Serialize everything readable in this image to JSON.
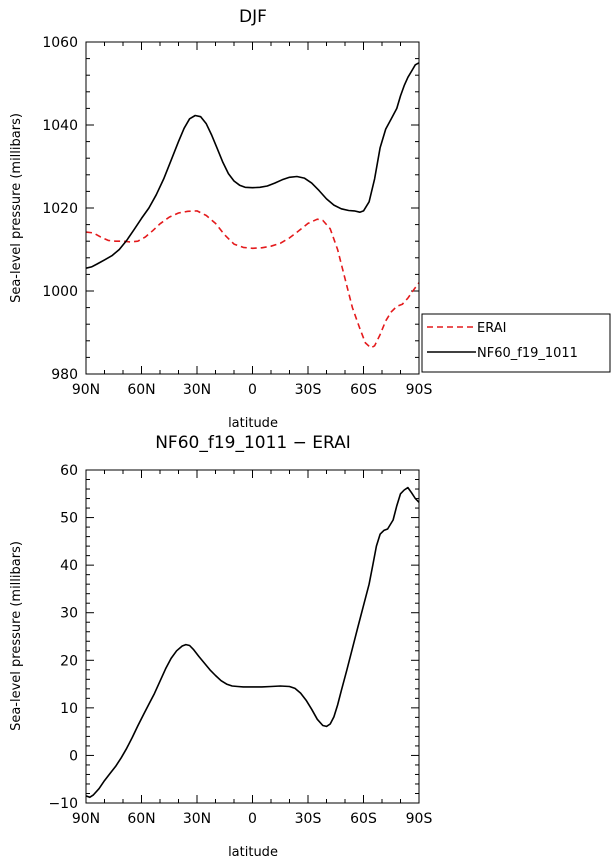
{
  "chart_data": [
    {
      "type": "line",
      "title": "DJF",
      "xlabel": "latitude",
      "ylabel": "Sea-level pressure (millibars)",
      "xlim": [
        -90,
        90
      ],
      "ylim": [
        980,
        1060
      ],
      "x_ticks": [
        -90,
        -60,
        -30,
        0,
        30,
        60,
        90
      ],
      "x_tick_labels": [
        "90N",
        "60N",
        "30N",
        "0",
        "30S",
        "60S",
        "90S"
      ],
      "y_ticks": [
        980,
        1000,
        1020,
        1040,
        1060
      ],
      "y_tick_labels": [
        "980",
        "1000",
        "1020",
        "1040",
        "1060"
      ],
      "legend_position": "right",
      "series": [
        {
          "name": "ERAI",
          "color": "#e41a1c",
          "style": "dashed",
          "points": [
            [
              -90,
              1014.2
            ],
            [
              -86,
              1014
            ],
            [
              -82,
              1013
            ],
            [
              -78,
              1012.2
            ],
            [
              -74,
              1012
            ],
            [
              -70,
              1012
            ],
            [
              -66,
              1011.8
            ],
            [
              -62,
              1012
            ],
            [
              -58,
              1013
            ],
            [
              -54,
              1014.5
            ],
            [
              -50,
              1016.2
            ],
            [
              -45,
              1017.8
            ],
            [
              -40,
              1018.8
            ],
            [
              -35,
              1019.2
            ],
            [
              -30,
              1019.3
            ],
            [
              -25,
              1018.2
            ],
            [
              -20,
              1016.3
            ],
            [
              -15,
              1013.5
            ],
            [
              -10,
              1011.3
            ],
            [
              -5,
              1010.5
            ],
            [
              0,
              1010.3
            ],
            [
              5,
              1010.4
            ],
            [
              10,
              1010.8
            ],
            [
              15,
              1011.5
            ],
            [
              20,
              1012.8
            ],
            [
              25,
              1014.5
            ],
            [
              30,
              1016.3
            ],
            [
              35,
              1017.3
            ],
            [
              38,
              1017
            ],
            [
              42,
              1015
            ],
            [
              46,
              1010
            ],
            [
              50,
              1003
            ],
            [
              54,
              996
            ],
            [
              58,
              991
            ],
            [
              61,
              987.5
            ],
            [
              64,
              986.3
            ],
            [
              66,
              986.8
            ],
            [
              69,
              989.5
            ],
            [
              72,
              992.8
            ],
            [
              75,
              995
            ],
            [
              78,
              996.3
            ],
            [
              81,
              996.8
            ],
            [
              84,
              998.3
            ],
            [
              87,
              1000.2
            ],
            [
              90,
              1002
            ]
          ]
        },
        {
          "name": "NF60_f19_1011",
          "color": "#000000",
          "style": "solid",
          "points": [
            [
              -90,
              1005.5
            ],
            [
              -87,
              1005.8
            ],
            [
              -84,
              1006.5
            ],
            [
              -80,
              1007.5
            ],
            [
              -76,
              1008.5
            ],
            [
              -72,
              1010
            ],
            [
              -68,
              1012.2
            ],
            [
              -64,
              1014.8
            ],
            [
              -60,
              1017.5
            ],
            [
              -56,
              1020
            ],
            [
              -52,
              1023.2
            ],
            [
              -48,
              1027
            ],
            [
              -44,
              1031.5
            ],
            [
              -40,
              1036
            ],
            [
              -37,
              1039.2
            ],
            [
              -34,
              1041.5
            ],
            [
              -31,
              1042.3
            ],
            [
              -28,
              1042
            ],
            [
              -25,
              1040.3
            ],
            [
              -22,
              1037.5
            ],
            [
              -19,
              1034.3
            ],
            [
              -16,
              1031
            ],
            [
              -13,
              1028.3
            ],
            [
              -10,
              1026.5
            ],
            [
              -7,
              1025.5
            ],
            [
              -4,
              1025
            ],
            [
              0,
              1024.9
            ],
            [
              4,
              1025
            ],
            [
              8,
              1025.3
            ],
            [
              12,
              1026
            ],
            [
              16,
              1026.8
            ],
            [
              20,
              1027.4
            ],
            [
              24,
              1027.6
            ],
            [
              28,
              1027.2
            ],
            [
              32,
              1026
            ],
            [
              36,
              1024.2
            ],
            [
              40,
              1022.2
            ],
            [
              44,
              1020.7
            ],
            [
              48,
              1019.8
            ],
            [
              52,
              1019.4
            ],
            [
              55,
              1019.3
            ],
            [
              58,
              1019
            ],
            [
              60,
              1019.3
            ],
            [
              63,
              1021.5
            ],
            [
              66,
              1027
            ],
            [
              69,
              1034.5
            ],
            [
              72,
              1039
            ],
            [
              75,
              1041.5
            ],
            [
              78,
              1044
            ],
            [
              80,
              1047
            ],
            [
              82,
              1049.5
            ],
            [
              84,
              1051.5
            ],
            [
              86,
              1053
            ],
            [
              88,
              1054.5
            ],
            [
              90,
              1055
            ]
          ]
        }
      ]
    },
    {
      "type": "line",
      "title": "NF60_f19_1011 − ERAI",
      "xlabel": "latitude",
      "ylabel": "Sea-level pressure (millibars)",
      "xlim": [
        -90,
        90
      ],
      "ylim": [
        -10,
        60
      ],
      "x_ticks": [
        -90,
        -60,
        -30,
        0,
        30,
        60,
        90
      ],
      "x_tick_labels": [
        "90N",
        "60N",
        "30N",
        "0",
        "30S",
        "60S",
        "90S"
      ],
      "y_ticks": [
        -10,
        0,
        10,
        20,
        30,
        40,
        50,
        60
      ],
      "y_tick_labels": [
        "−10",
        "0",
        "10",
        "20",
        "30",
        "40",
        "50",
        "60"
      ],
      "series": [
        {
          "name": "NF60_f19_1011 − ERAI",
          "color": "#000000",
          "style": "solid",
          "points": [
            [
              -90,
              -8.5
            ],
            [
              -88,
              -8.8
            ],
            [
              -86,
              -8.3
            ],
            [
              -83,
              -7
            ],
            [
              -80,
              -5.3
            ],
            [
              -77,
              -3.8
            ],
            [
              -74,
              -2.3
            ],
            [
              -71,
              -0.5
            ],
            [
              -68,
              1.5
            ],
            [
              -65,
              3.8
            ],
            [
              -62,
              6.2
            ],
            [
              -59,
              8.5
            ],
            [
              -56,
              10.8
            ],
            [
              -53,
              13
            ],
            [
              -50,
              15.6
            ],
            [
              -47,
              18.2
            ],
            [
              -44,
              20.4
            ],
            [
              -41,
              22
            ],
            [
              -38,
              23
            ],
            [
              -36,
              23.3
            ],
            [
              -34,
              23.1
            ],
            [
              -32,
              22.3
            ],
            [
              -29,
              20.8
            ],
            [
              -26,
              19.4
            ],
            [
              -23,
              18
            ],
            [
              -20,
              16.8
            ],
            [
              -17,
              15.7
            ],
            [
              -14,
              15
            ],
            [
              -11,
              14.6
            ],
            [
              -8,
              14.5
            ],
            [
              -5,
              14.4
            ],
            [
              0,
              14.4
            ],
            [
              5,
              14.4
            ],
            [
              10,
              14.5
            ],
            [
              15,
              14.6
            ],
            [
              20,
              14.5
            ],
            [
              23,
              14.1
            ],
            [
              26,
              13.1
            ],
            [
              29,
              11.6
            ],
            [
              32,
              9.7
            ],
            [
              35,
              7.6
            ],
            [
              38,
              6.3
            ],
            [
              40,
              6.1
            ],
            [
              42,
              6.6
            ],
            [
              44,
              8.1
            ],
            [
              46,
              10.6
            ],
            [
              48,
              13.6
            ],
            [
              51,
              18
            ],
            [
              54,
              22.5
            ],
            [
              57,
              27
            ],
            [
              60,
              31.5
            ],
            [
              63,
              36
            ],
            [
              65,
              40
            ],
            [
              67,
              44
            ],
            [
              69,
              46.5
            ],
            [
              71,
              47.3
            ],
            [
              73,
              47.6
            ],
            [
              76,
              49.5
            ],
            [
              78,
              52.5
            ],
            [
              80,
              55
            ],
            [
              82,
              55.8
            ],
            [
              84,
              56.3
            ],
            [
              86,
              55.2
            ],
            [
              88,
              54
            ],
            [
              90,
              53.2
            ]
          ]
        }
      ]
    }
  ]
}
